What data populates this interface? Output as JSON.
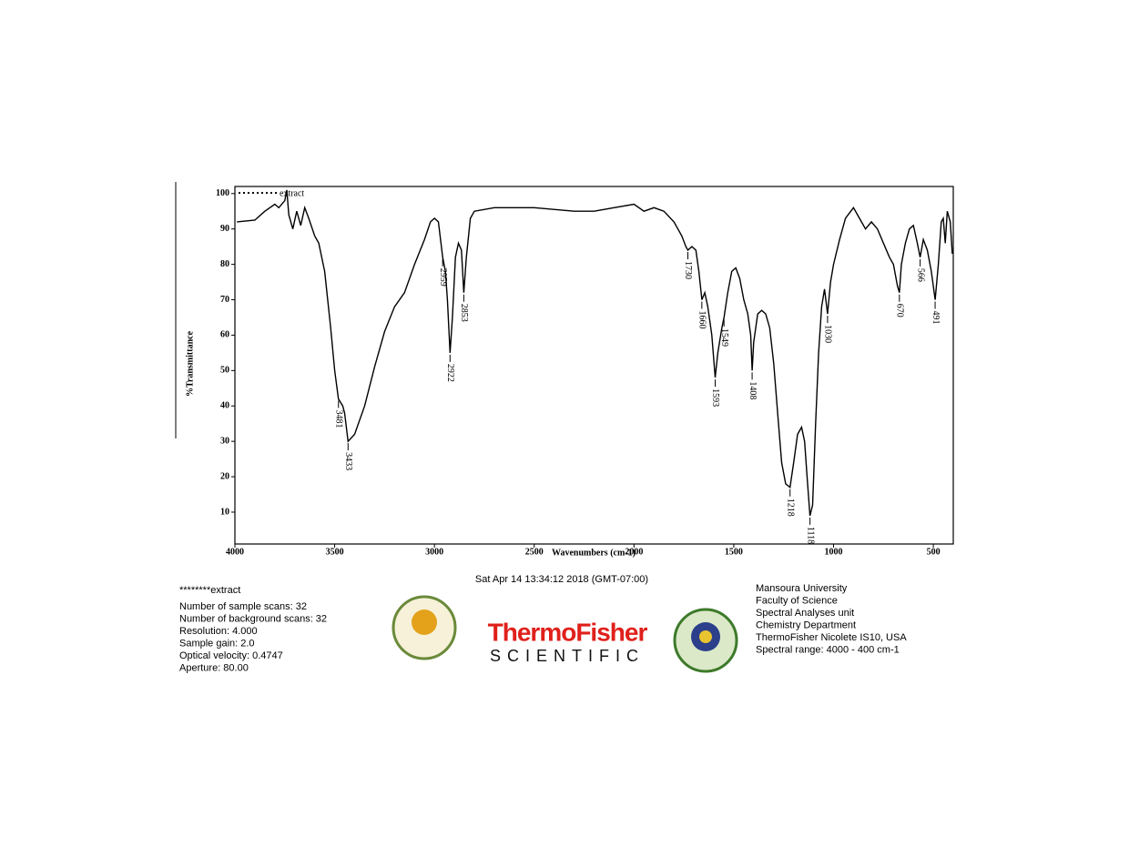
{
  "chart_data": {
    "type": "line",
    "x_label": "Wavenumbers (cm-1)",
    "y_label": "%Transmittance",
    "series": [
      {
        "name": "extract",
        "color": "#000000",
        "x": [
          3990,
          3900,
          3850,
          3800,
          3780,
          3750,
          3740,
          3730,
          3710,
          3690,
          3670,
          3650,
          3630,
          3600,
          3580,
          3550,
          3520,
          3500,
          3481,
          3460,
          3450,
          3433,
          3400,
          3350,
          3300,
          3250,
          3200,
          3150,
          3100,
          3050,
          3020,
          3000,
          2980,
          2959,
          2945,
          2935,
          2922,
          2910,
          2895,
          2880,
          2865,
          2853,
          2840,
          2820,
          2800,
          2700,
          2500,
          2300,
          2200,
          2100,
          2000,
          1950,
          1900,
          1850,
          1800,
          1760,
          1740,
          1730,
          1710,
          1690,
          1675,
          1660,
          1645,
          1630,
          1610,
          1593,
          1580,
          1560,
          1549,
          1530,
          1510,
          1490,
          1470,
          1450,
          1430,
          1415,
          1408,
          1400,
          1380,
          1360,
          1340,
          1320,
          1300,
          1280,
          1260,
          1240,
          1218,
          1200,
          1180,
          1160,
          1145,
          1130,
          1118,
          1105,
          1090,
          1075,
          1060,
          1045,
          1030,
          1015,
          1000,
          970,
          940,
          900,
          870,
          840,
          810,
          780,
          750,
          720,
          700,
          680,
          670,
          660,
          640,
          620,
          600,
          580,
          566,
          550,
          530,
          510,
          491,
          475,
          460,
          450,
          440,
          430,
          415,
          405
        ],
        "values": [
          92,
          92.5,
          95,
          97,
          96,
          98,
          101,
          94,
          90,
          95,
          91,
          96,
          93,
          88,
          86,
          78,
          62,
          50,
          42,
          40,
          38,
          30,
          32,
          40,
          51,
          61,
          68,
          72,
          80,
          87,
          92,
          93,
          92,
          82,
          78,
          70,
          55,
          65,
          82,
          86,
          84,
          72,
          82,
          93,
          95,
          96,
          96,
          95,
          95,
          96,
          97,
          95,
          96,
          95,
          92,
          88,
          85,
          84,
          85,
          84,
          78,
          70,
          72,
          68,
          60,
          48,
          55,
          62,
          65,
          72,
          78,
          79,
          76,
          70,
          66,
          60,
          50,
          58,
          66,
          67,
          66,
          62,
          52,
          38,
          24,
          18,
          17,
          24,
          32,
          34,
          30,
          18,
          9,
          12,
          35,
          55,
          68,
          73,
          66,
          75,
          80,
          87,
          93,
          96,
          93,
          90,
          92,
          90,
          86,
          82,
          80,
          74,
          72,
          80,
          86,
          90,
          91,
          86,
          82,
          87,
          84,
          78,
          70,
          80,
          92,
          93,
          86,
          95,
          92,
          83
        ]
      }
    ],
    "xlim": [
      4000,
      400
    ],
    "ylim": [
      1,
      102
    ],
    "xticks": [
      4000,
      3500,
      3000,
      2500,
      2000,
      1500,
      1000,
      500
    ],
    "yticks": [
      10,
      20,
      30,
      40,
      50,
      60,
      70,
      80,
      90,
      100
    ],
    "peaks": [
      {
        "x": 3481,
        "y": 42
      },
      {
        "x": 3433,
        "y": 30
      },
      {
        "x": 2959,
        "y": 82
      },
      {
        "x": 2922,
        "y": 55
      },
      {
        "x": 2853,
        "y": 72
      },
      {
        "x": 1730,
        "y": 84
      },
      {
        "x": 1660,
        "y": 70
      },
      {
        "x": 1593,
        "y": 48
      },
      {
        "x": 1549,
        "y": 65
      },
      {
        "x": 1408,
        "y": 50
      },
      {
        "x": 1218,
        "y": 17
      },
      {
        "x": 1118,
        "y": 9
      },
      {
        "x": 1030,
        "y": 66
      },
      {
        "x": 670,
        "y": 72
      },
      {
        "x": 566,
        "y": 82
      },
      {
        "x": 491,
        "y": 70
      }
    ]
  },
  "footer": {
    "sample": "********extract",
    "date": "Sat Apr 14 13:34:12 2018 (GMT-07:00)",
    "left": [
      "Number of sample scans:  32",
      "Number of background scans:  32",
      "Resolution:   4.000",
      "Sample gain:  2.0",
      "Optical velocity:  0.4747",
      "Aperture:  80.00"
    ],
    "brand": "ThermoFisher",
    "brand_sub": "SCIENTIFIC",
    "right": [
      "Mansoura University",
      "Faculty of Science",
      "Spectral Analyses unit",
      "Chemistry Department",
      "ThermoFisher Nicolete IS10, USA",
      "Spectral range: 4000 - 400 cm-1"
    ]
  }
}
